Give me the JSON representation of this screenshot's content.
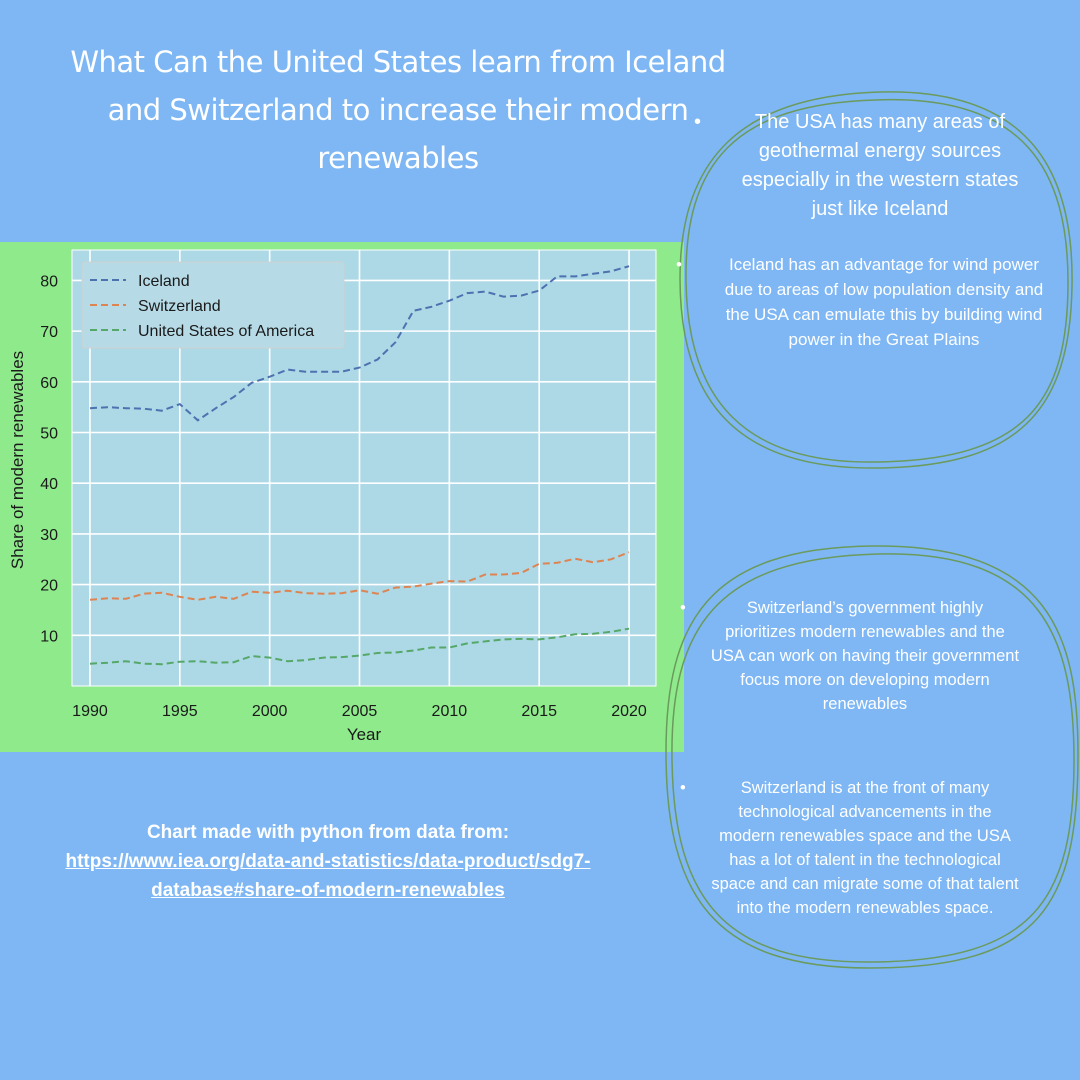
{
  "title": "What Can the United States learn from Iceland and Switzerland to increase their modern renewables",
  "source": {
    "label": "Chart made with python from data from:",
    "link": "https://www.iea.org/data-and-statistics/data-product/sdg7-database#share-of-modern-renewables "
  },
  "bubbles": {
    "top": [
      "The USA has many areas of geothermal energy sources especially in the western states just like Iceland",
      "Iceland has an advantage for wind power due to areas of low population density and the USA can emulate this by building wind power in the Great Plains"
    ],
    "bottom": [
      "Switzerland’s government highly prioritizes modern renewables and the USA can work on having their government focus more on developing modern renewables",
      "Switzerland is at the front of many technological advancements in the modern renewables space and the USA has a lot of talent in the technological space and can migrate some of that talent into the modern renewables space."
    ]
  },
  "colors": {
    "background": "#7eb7f4",
    "chart_frame": "#8fea8c",
    "plot_area": "#add8e6",
    "bubble_outline": "#6a9a5c"
  },
  "chart_data": {
    "type": "line",
    "xlabel": "Year",
    "ylabel": "Share of modern renewables",
    "xlim": [
      1989,
      2021.5
    ],
    "ylim": [
      0,
      86
    ],
    "xticks": [
      1990,
      1995,
      2000,
      2005,
      2010,
      2015,
      2020
    ],
    "yticks": [
      10,
      20,
      30,
      40,
      50,
      60,
      70,
      80
    ],
    "grid": true,
    "line_style": "dashed",
    "legend_position": "top-left",
    "x": [
      1990,
      1991,
      1992,
      1993,
      1994,
      1995,
      1996,
      1997,
      1998,
      1999,
      2000,
      2001,
      2002,
      2003,
      2004,
      2005,
      2006,
      2007,
      2008,
      2009,
      2010,
      2011,
      2012,
      2013,
      2014,
      2015,
      2016,
      2017,
      2018,
      2019,
      2020
    ],
    "series": [
      {
        "name": "Iceland",
        "color": "#4c72b0",
        "values": [
          54.8,
          55.0,
          54.8,
          54.7,
          54.3,
          55.6,
          52.4,
          54.8,
          57.0,
          59.8,
          61.0,
          62.4,
          62.0,
          62.0,
          62.0,
          62.8,
          64.4,
          67.8,
          74.0,
          74.8,
          76.0,
          77.5,
          77.8,
          76.8,
          77.0,
          78.0,
          80.8,
          80.8,
          81.3,
          81.8,
          82.8
        ]
      },
      {
        "name": "Switzerland",
        "color": "#dd8452",
        "values": [
          17.0,
          17.3,
          17.2,
          18.2,
          18.4,
          17.6,
          17.0,
          17.6,
          17.2,
          18.6,
          18.4,
          18.8,
          18.3,
          18.2,
          18.3,
          18.9,
          18.2,
          19.4,
          19.6,
          20.2,
          20.7,
          20.6,
          22.0,
          22.0,
          22.3,
          24.1,
          24.3,
          25.1,
          24.4,
          25.0,
          26.4
        ]
      },
      {
        "name": "United States of America",
        "color": "#55a868",
        "values": [
          4.4,
          4.6,
          4.9,
          4.4,
          4.3,
          4.8,
          4.9,
          4.6,
          4.7,
          5.9,
          5.6,
          4.9,
          5.1,
          5.6,
          5.7,
          6.0,
          6.5,
          6.6,
          7.0,
          7.6,
          7.6,
          8.4,
          8.8,
          9.2,
          9.3,
          9.2,
          9.6,
          10.2,
          10.3,
          10.7,
          11.3
        ]
      }
    ]
  }
}
